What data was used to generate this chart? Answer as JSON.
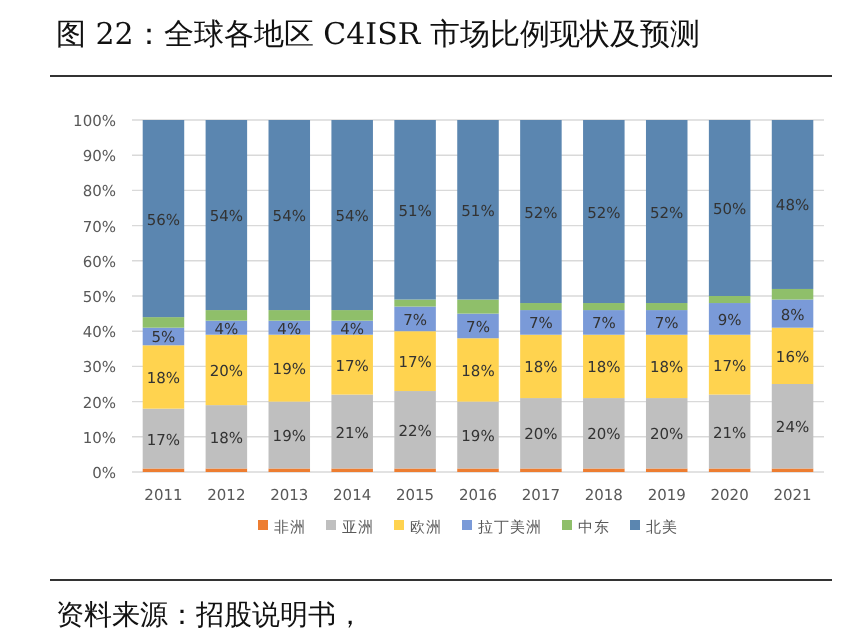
{
  "chart_data": {
    "type": "bar",
    "title": "图 22：全球各地区 C4ISR 市场比例现状及预测",
    "annotations": [
      "资料来源：招股说明书，"
    ],
    "categories": [
      "2011",
      "2012",
      "2013",
      "2014",
      "2015",
      "2016",
      "2017",
      "2018",
      "2019",
      "2020",
      "2021"
    ],
    "stacked": true,
    "grid": "y",
    "legend": "bottom",
    "ylim": [
      0,
      100
    ],
    "yticks": [
      {
        "value": 0,
        "label": "0%"
      },
      {
        "value": 10,
        "label": "10%"
      },
      {
        "value": 20,
        "label": "20%"
      },
      {
        "value": 30,
        "label": "30%"
      },
      {
        "value": 40,
        "label": "40%"
      },
      {
        "value": 50,
        "label": "50%"
      },
      {
        "value": 60,
        "label": "60%"
      },
      {
        "value": 70,
        "label": "70%"
      },
      {
        "value": 80,
        "label": "80%"
      },
      {
        "value": 90,
        "label": "90%"
      },
      {
        "value": 100,
        "label": "100%"
      }
    ],
    "series": [
      {
        "name": "非洲",
        "color": "#ed7d31",
        "values": [
          1,
          1,
          1,
          1,
          1,
          1,
          1,
          1,
          1,
          1,
          1
        ]
      },
      {
        "name": "亚洲",
        "color": "#bfbfbf",
        "values": [
          17,
          18,
          19,
          21,
          22,
          19,
          20,
          20,
          20,
          21,
          24
        ],
        "value_labels": [
          "17%",
          "18%",
          "19%",
          "21%",
          "22%",
          "19%",
          "20%",
          "20%",
          "20%",
          "21%",
          "24%"
        ]
      },
      {
        "name": "欧洲",
        "color": "#ffd34f",
        "values": [
          18,
          20,
          19,
          17,
          17,
          18,
          18,
          18,
          18,
          17,
          16
        ],
        "value_labels": [
          "18%",
          "20%",
          "19%",
          "17%",
          "17%",
          "18%",
          "18%",
          "18%",
          "18%",
          "17%",
          "16%"
        ]
      },
      {
        "name": "拉丁美洲",
        "color": "#7a9ad8",
        "values": [
          5,
          4,
          4,
          4,
          7,
          7,
          7,
          7,
          7,
          9,
          8
        ],
        "value_labels": [
          "5%",
          "4%",
          "4%",
          "4%",
          "7%",
          "7%",
          "7%",
          "7%",
          "7%",
          "9%",
          "8%"
        ]
      },
      {
        "name": "中东",
        "color": "#8fbf6a",
        "values": [
          3,
          3,
          3,
          3,
          2,
          4,
          2,
          2,
          2,
          2,
          3
        ]
      },
      {
        "name": "北美",
        "color": "#5b86b0",
        "values": [
          56,
          54,
          54,
          54,
          51,
          51,
          52,
          52,
          52,
          50,
          48
        ],
        "value_labels": [
          "56%",
          "54%",
          "54%",
          "54%",
          "51%",
          "51%",
          "52%",
          "52%",
          "52%",
          "50%",
          "48%"
        ]
      }
    ]
  }
}
